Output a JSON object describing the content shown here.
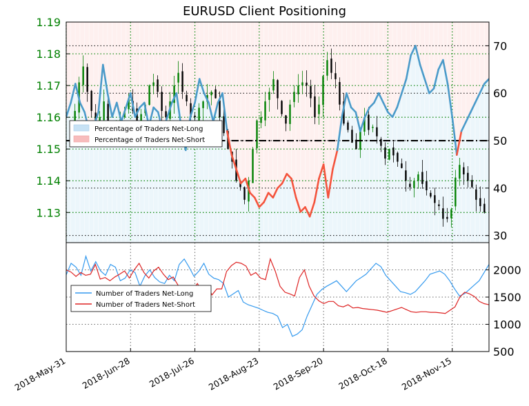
{
  "chart_data": [
    {
      "type": "candlestick",
      "title": "EURUSD Client Positioning",
      "left_axis": {
        "ticks": [
          1.13,
          1.14,
          1.15,
          1.16,
          1.17,
          1.18,
          1.19
        ],
        "tick_labels": [
          "1.13",
          "1.14",
          "1.15",
          "1.16",
          "1.17",
          "1.18",
          "1.19"
        ],
        "range": [
          1.1205,
          1.19
        ],
        "label_color": "#008000"
      },
      "right_axis": {
        "ticks": [
          30,
          40,
          50,
          60,
          70
        ],
        "tick_labels": [
          "30",
          "40",
          "50",
          "60",
          "70"
        ],
        "range": [
          28.5,
          75
        ]
      },
      "x_axis": {
        "tick_labels": [
          "2018-May-31",
          "2018-Jun-28",
          "2018-Jul-26",
          "2018-Aug-23",
          "2018-Sep-20",
          "2018-Oct-18",
          "2018-Nov-15"
        ],
        "tick_days": [
          0,
          28,
          56,
          84,
          112,
          140,
          168
        ],
        "range_days": [
          0,
          184
        ]
      },
      "reference_line": {
        "value": 50,
        "style": "dash-dot",
        "color": "#000000"
      },
      "grid": true,
      "legend": {
        "position": "upper-left",
        "entries": [
          "Percentage of Traders Net-Long",
          "Percentage of Traders Net-Short"
        ]
      },
      "series": [
        {
          "name": "Percentage of Traders Net-Long",
          "color": "#4a9ac9",
          "percent_x": [
            0,
            2,
            4,
            6,
            8,
            10,
            12,
            14,
            16,
            18,
            20,
            22,
            24,
            26,
            28,
            30,
            32,
            34,
            36,
            38,
            40,
            42,
            44,
            46,
            48,
            50,
            52,
            54,
            56,
            58,
            60,
            62,
            64,
            66,
            68,
            70,
            72,
            74,
            76,
            78,
            80,
            82,
            84,
            86,
            88,
            90,
            92,
            94,
            96,
            98,
            100,
            102,
            104,
            106,
            108,
            110,
            112,
            114,
            116,
            118,
            120,
            122,
            124,
            126,
            128,
            130,
            132,
            134,
            136,
            138,
            140,
            142,
            144,
            146,
            148,
            150,
            152,
            154,
            156,
            158,
            160,
            162,
            164,
            166,
            168,
            170,
            172,
            174,
            176,
            178,
            180,
            182,
            184
          ],
          "values": [
            55,
            58,
            62,
            58,
            56,
            52,
            53,
            56,
            66,
            60,
            55,
            58,
            54,
            57,
            60,
            55,
            57,
            58,
            53,
            57,
            56,
            52,
            55,
            58,
            60,
            53,
            48,
            55,
            58,
            63,
            60,
            58,
            54,
            58,
            60,
            52,
            47,
            44,
            41,
            42,
            39,
            38,
            36,
            37,
            39,
            38,
            40,
            41,
            43,
            42,
            38,
            35,
            36,
            34,
            37,
            42,
            45,
            38,
            44,
            48,
            55,
            60,
            57,
            56,
            52,
            55,
            57,
            58,
            60,
            58,
            56,
            55,
            57,
            60,
            63,
            68,
            70,
            66,
            63,
            60,
            61,
            65,
            67,
            62,
            55,
            47,
            52,
            54,
            56,
            58,
            60,
            62,
            63
          ]
        },
        {
          "name": "Number of Traders Net-Long",
          "color": "#3399ee",
          "values": [
            1910,
            2120,
            2050,
            1900,
            2250,
            1980,
            2150,
            1980,
            1900,
            2100,
            2050,
            1800,
            1850,
            2000,
            1950,
            1700,
            1890,
            2000,
            1860,
            1780,
            1750,
            1900,
            1800,
            2100,
            2200,
            2050,
            1880,
            1980,
            2120,
            1920,
            1850,
            1820,
            1750,
            1500,
            1560,
            1620,
            1410,
            1360,
            1330,
            1300,
            1260,
            1220,
            1200,
            1150,
            940,
            1000,
            780,
            820,
            900,
            1150,
            1350,
            1550,
            1640,
            1700,
            1750,
            1800,
            1700,
            1600,
            1700,
            1800,
            1860,
            1920,
            2020,
            2120,
            2060,
            1900,
            1800,
            1700,
            1600,
            1580,
            1550,
            1600,
            1700,
            1800,
            1920,
            1950,
            1980,
            1920,
            1800,
            1650,
            1520,
            1560,
            1640,
            1720,
            1800,
            1950,
            2100
          ]
        },
        {
          "name": "Number of Traders Net-Short",
          "color": "#dd2222",
          "values": [
            2000,
            1960,
            1880,
            1950,
            1900,
            1920,
            2100,
            1830,
            1860,
            1800,
            1870,
            1920,
            1980,
            1850,
            2000,
            2120,
            1950,
            1850,
            1980,
            2050,
            1920,
            1820,
            1870,
            1720,
            1500,
            1570,
            1630,
            1750,
            1600,
            1700,
            1540,
            1650,
            1650,
            1970,
            2080,
            2140,
            2120,
            2070,
            1900,
            1950,
            1850,
            1820,
            2200,
            1980,
            1700,
            1590,
            1560,
            1520,
            1860,
            2000,
            1700,
            1520,
            1430,
            1380,
            1420,
            1420,
            1340,
            1320,
            1360,
            1300,
            1310,
            1290,
            1280,
            1270,
            1260,
            1240,
            1220,
            1250,
            1280,
            1310,
            1270,
            1230,
            1220,
            1230,
            1230,
            1220,
            1220,
            1210,
            1200,
            1260,
            1320,
            1500,
            1590,
            1560,
            1510,
            1420,
            1380,
            1360
          ]
        }
      ]
    },
    {
      "type": "line",
      "right_axis": {
        "ticks": [
          500,
          1000,
          1500,
          2000
        ],
        "tick_labels": [
          "500",
          "1000",
          "1500",
          "2000"
        ],
        "range": [
          500,
          2500
        ]
      },
      "grid": true,
      "legend": {
        "position": "upper-left",
        "entries": [
          "Number of Traders Net-Long",
          "Number of Traders Net-Short"
        ]
      }
    }
  ],
  "price_seed": [
    1.154,
    1.162,
    1.171,
    1.176,
    1.168,
    1.162,
    1.158,
    1.16,
    1.165,
    1.155,
    1.154,
    1.158,
    1.16,
    1.162,
    1.166,
    1.162,
    1.158,
    1.161,
    1.164,
    1.17,
    1.171,
    1.168,
    1.162,
    1.16,
    1.165,
    1.17,
    1.174,
    1.168,
    1.165,
    1.16,
    1.16,
    1.163,
    1.165,
    1.167,
    1.168,
    1.166,
    1.16,
    1.155,
    1.15,
    1.146,
    1.14,
    1.138,
    1.134,
    1.14,
    1.15,
    1.159,
    1.16,
    1.165,
    1.168,
    1.172,
    1.166,
    1.161,
    1.158,
    1.164,
    1.168,
    1.17,
    1.171,
    1.17,
    1.166,
    1.16,
    1.164,
    1.173,
    1.178,
    1.174,
    1.172,
    1.164,
    1.158,
    1.156,
    1.152,
    1.15,
    1.156,
    1.16,
    1.156,
    1.157,
    1.154,
    1.151,
    1.147,
    1.15,
    1.148,
    1.146,
    1.144,
    1.14,
    1.138,
    1.14,
    1.142,
    1.139,
    1.137,
    1.135,
    1.133,
    1.132,
    1.128,
    1.128,
    1.131,
    1.141,
    1.145,
    1.142,
    1.14,
    1.138,
    1.134,
    1.132,
    1.13,
    1.128
  ],
  "colors": {
    "long": "#4a9ac9",
    "short": "#f4533c",
    "price_up": "#008000",
    "price_down": "#000000",
    "bg_long": "#ddeef8",
    "bg_short": "#fde4e1",
    "axis_green": "#008000"
  }
}
